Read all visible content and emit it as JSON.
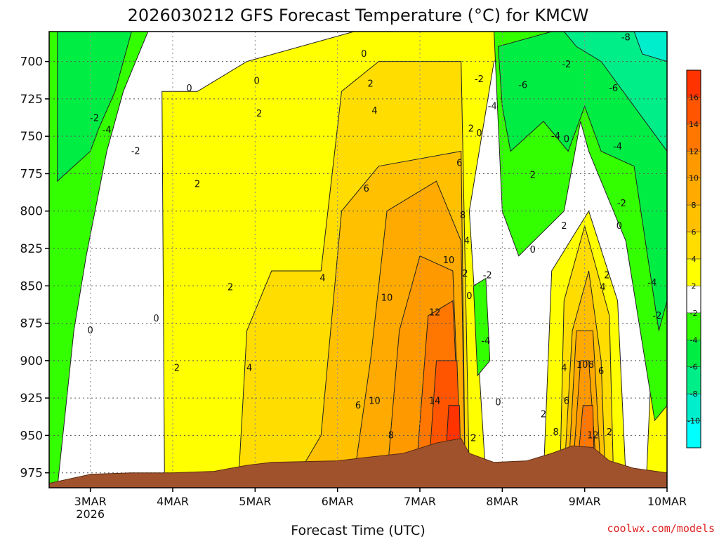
{
  "chart_data": {
    "type": "heatmap",
    "title": "2026030212 GFS Forecast Temperature (°C) for KMCW",
    "xlabel": "Forecast Time (UTC)",
    "ylabel": "",
    "credit": "coolwx.com/models",
    "x_ticks": [
      {
        "day": 3,
        "label": "3MAR",
        "sublabel": "2026"
      },
      {
        "day": 4,
        "label": "4MAR",
        "sublabel": ""
      },
      {
        "day": 5,
        "label": "5MAR",
        "sublabel": ""
      },
      {
        "day": 6,
        "label": "6MAR",
        "sublabel": ""
      },
      {
        "day": 7,
        "label": "7MAR",
        "sublabel": ""
      },
      {
        "day": 8,
        "label": "8MAR",
        "sublabel": ""
      },
      {
        "day": 9,
        "label": "9MAR",
        "sublabel": ""
      },
      {
        "day": 10,
        "label": "10MAR",
        "sublabel": ""
      }
    ],
    "y_ticks": [
      700,
      725,
      750,
      775,
      800,
      825,
      850,
      875,
      900,
      925,
      950,
      975
    ],
    "xlim": [
      2.5,
      10.0
    ],
    "ylim": [
      680,
      985
    ],
    "colorbar": {
      "ticks": [
        16,
        14,
        12,
        10,
        8,
        6,
        4,
        2,
        -2,
        -4,
        -6,
        -8,
        -10
      ],
      "bins": [
        {
          "lo": 16,
          "hi": 18,
          "color": "#ff3300"
        },
        {
          "lo": 14,
          "hi": 16,
          "color": "#ff5500"
        },
        {
          "lo": 12,
          "hi": 14,
          "color": "#ff7700"
        },
        {
          "lo": 10,
          "hi": 12,
          "color": "#ff9900"
        },
        {
          "lo": 8,
          "hi": 10,
          "color": "#ffaa00"
        },
        {
          "lo": 6,
          "hi": 8,
          "color": "#ffc000"
        },
        {
          "lo": 4,
          "hi": 6,
          "color": "#ffdd00"
        },
        {
          "lo": 2,
          "hi": 4,
          "color": "#ffff00"
        },
        {
          "lo": -2,
          "hi": 2,
          "color": "#ffffff"
        },
        {
          "lo": -4,
          "hi": -2,
          "color": "#33ff00"
        },
        {
          "lo": -6,
          "hi": -4,
          "color": "#00ee44"
        },
        {
          "lo": -8,
          "hi": -6,
          "color": "#00ee88"
        },
        {
          "lo": -10,
          "hi": -8,
          "color": "#00eecc"
        },
        {
          "lo": -12,
          "hi": -10,
          "color": "#00ffff"
        }
      ]
    },
    "regions": [
      {
        "name": "warm-2",
        "color": "#ffff00",
        "points": [
          [
            3.9,
            978
          ],
          [
            3.87,
            720
          ],
          [
            4.3,
            720
          ],
          [
            4.9,
            700
          ],
          [
            6.2,
            680
          ],
          [
            8.4,
            680
          ],
          [
            7.9,
            700
          ],
          [
            7.6,
            800
          ],
          [
            7.8,
            978
          ]
        ]
      },
      {
        "name": "warm-2b",
        "color": "#ffff00",
        "points": [
          [
            8.5,
            978
          ],
          [
            8.6,
            840
          ],
          [
            9.05,
            800
          ],
          [
            9.4,
            860
          ],
          [
            9.5,
            978
          ]
        ]
      },
      {
        "name": "warm-2c",
        "color": "#ffff00",
        "points": [
          [
            9.75,
            978
          ],
          [
            9.8,
            915
          ],
          [
            10.0,
            905
          ],
          [
            10.0,
            978
          ]
        ]
      },
      {
        "name": "warm-4",
        "color": "#ffdd00",
        "points": [
          [
            4.8,
            978
          ],
          [
            4.9,
            880
          ],
          [
            5.2,
            840
          ],
          [
            5.8,
            840
          ],
          [
            6.05,
            720
          ],
          [
            6.5,
            700
          ],
          [
            7.5,
            700
          ],
          [
            7.6,
            978
          ]
        ]
      },
      {
        "name": "warm-4b",
        "color": "#ffdd00",
        "points": [
          [
            8.7,
            978
          ],
          [
            8.75,
            860
          ],
          [
            9.0,
            810
          ],
          [
            9.3,
            870
          ],
          [
            9.35,
            978
          ]
        ]
      },
      {
        "name": "warm-6",
        "color": "#ffc000",
        "points": [
          [
            5.5,
            978
          ],
          [
            5.8,
            950
          ],
          [
            6.05,
            800
          ],
          [
            6.5,
            770
          ],
          [
            7.5,
            760
          ],
          [
            7.55,
            978
          ]
        ]
      },
      {
        "name": "warm-6b",
        "color": "#ffc000",
        "points": [
          [
            8.75,
            978
          ],
          [
            8.85,
            880
          ],
          [
            9.05,
            840
          ],
          [
            9.2,
            900
          ],
          [
            9.25,
            978
          ]
        ]
      },
      {
        "name": "warm-8",
        "color": "#ffaa00",
        "points": [
          [
            6.2,
            978
          ],
          [
            6.4,
            900
          ],
          [
            6.6,
            800
          ],
          [
            7.2,
            780
          ],
          [
            7.5,
            820
          ],
          [
            7.55,
            978
          ]
        ]
      },
      {
        "name": "warm-8b",
        "color": "#ffaa00",
        "points": [
          [
            8.8,
            978
          ],
          [
            8.9,
            880
          ],
          [
            9.1,
            880
          ],
          [
            9.2,
            978
          ]
        ]
      },
      {
        "name": "warm-10",
        "color": "#ff9900",
        "points": [
          [
            6.6,
            978
          ],
          [
            6.75,
            880
          ],
          [
            7.0,
            830
          ],
          [
            7.4,
            840
          ],
          [
            7.5,
            978
          ]
        ]
      },
      {
        "name": "warm-12",
        "color": "#ff7700",
        "points": [
          [
            6.95,
            978
          ],
          [
            7.1,
            870
          ],
          [
            7.4,
            860
          ],
          [
            7.5,
            978
          ]
        ]
      },
      {
        "name": "warm-14",
        "color": "#ff5500",
        "points": [
          [
            7.1,
            978
          ],
          [
            7.2,
            900
          ],
          [
            7.45,
            900
          ],
          [
            7.5,
            978
          ]
        ]
      },
      {
        "name": "warm-16",
        "color": "#ff3300",
        "points": [
          [
            7.3,
            978
          ],
          [
            7.35,
            930
          ],
          [
            7.48,
            930
          ],
          [
            7.5,
            978
          ]
        ]
      },
      {
        "name": "warm-10b",
        "color": "#ff9900",
        "points": [
          [
            8.85,
            978
          ],
          [
            8.95,
            900
          ],
          [
            9.05,
            900
          ],
          [
            9.15,
            978
          ]
        ]
      },
      {
        "name": "warm-12b",
        "color": "#ff7700",
        "points": [
          [
            8.9,
            978
          ],
          [
            8.98,
            930
          ],
          [
            9.1,
            930
          ],
          [
            9.12,
            978
          ]
        ]
      },
      {
        "name": "cold-2-left",
        "color": "#33ff00",
        "points": [
          [
            2.5,
            680
          ],
          [
            3.7,
            680
          ],
          [
            3.4,
            720
          ],
          [
            3.2,
            760
          ],
          [
            2.95,
            830
          ],
          [
            2.8,
            880
          ],
          [
            2.6,
            985
          ],
          [
            2.5,
            985
          ]
        ]
      },
      {
        "name": "cold-4-left",
        "color": "#00ee44",
        "points": [
          [
            2.6,
            680
          ],
          [
            3.5,
            680
          ],
          [
            3.3,
            720
          ],
          [
            3.1,
            745
          ],
          [
            3.0,
            760
          ],
          [
            2.8,
            770
          ],
          [
            2.6,
            780
          ]
        ]
      },
      {
        "name": "cold-2-right",
        "color": "#33ff00",
        "points": [
          [
            8.5,
            680
          ],
          [
            10.0,
            680
          ],
          [
            10.0,
            930
          ],
          [
            9.85,
            940
          ],
          [
            9.5,
            820
          ],
          [
            9.05,
            760
          ],
          [
            8.95,
            740
          ],
          [
            8.75,
            800
          ],
          [
            8.2,
            830
          ],
          [
            8.0,
            800
          ],
          [
            7.9,
            680
          ]
        ]
      },
      {
        "name": "cold-4-right",
        "color": "#00ee44",
        "points": [
          [
            8.6,
            680
          ],
          [
            10.0,
            680
          ],
          [
            10.0,
            860
          ],
          [
            9.9,
            880
          ],
          [
            9.6,
            770
          ],
          [
            9.2,
            760
          ],
          [
            9.0,
            730
          ],
          [
            8.8,
            760
          ],
          [
            8.5,
            740
          ],
          [
            8.1,
            760
          ],
          [
            8.0,
            730
          ],
          [
            7.95,
            690
          ]
        ]
      },
      {
        "name": "cold-6-right",
        "color": "#00ee88",
        "points": [
          [
            8.75,
            680
          ],
          [
            10.0,
            680
          ],
          [
            10.0,
            760
          ],
          [
            9.6,
            730
          ],
          [
            9.2,
            700
          ],
          [
            8.9,
            690
          ]
        ]
      },
      {
        "name": "cold-8-right",
        "color": "#00eecc",
        "points": [
          [
            9.6,
            680
          ],
          [
            10.0,
            680
          ],
          [
            10.0,
            700
          ],
          [
            9.7,
            695
          ]
        ]
      },
      {
        "name": "cold-2-mid",
        "color": "#33ff00",
        "points": [
          [
            7.65,
            850
          ],
          [
            7.8,
            845
          ],
          [
            7.85,
            900
          ],
          [
            7.7,
            910
          ]
        ]
      }
    ],
    "contour_labels": [
      {
        "day": 3.0,
        "p": 880,
        "text": "0"
      },
      {
        "day": 3.05,
        "p": 738,
        "text": "-2"
      },
      {
        "day": 3.2,
        "p": 746,
        "text": "-4"
      },
      {
        "day": 3.55,
        "p": 760,
        "text": "-2"
      },
      {
        "day": 4.2,
        "p": 718,
        "text": "0"
      },
      {
        "day": 4.3,
        "p": 782,
        "text": "2"
      },
      {
        "day": 3.8,
        "p": 872,
        "text": "0"
      },
      {
        "day": 4.05,
        "p": 905,
        "text": "2"
      },
      {
        "day": 4.7,
        "p": 851,
        "text": "2"
      },
      {
        "day": 5.02,
        "p": 713,
        "text": "0"
      },
      {
        "day": 5.05,
        "p": 735,
        "text": "2"
      },
      {
        "day": 4.93,
        "p": 905,
        "text": "4"
      },
      {
        "day": 5.82,
        "p": 845,
        "text": "4"
      },
      {
        "day": 6.25,
        "p": 930,
        "text": "6"
      },
      {
        "day": 6.32,
        "p": 695,
        "text": "0"
      },
      {
        "day": 6.4,
        "p": 715,
        "text": "2"
      },
      {
        "day": 6.45,
        "p": 733,
        "text": "4"
      },
      {
        "day": 6.35,
        "p": 785,
        "text": "6"
      },
      {
        "day": 6.45,
        "p": 927,
        "text": "10"
      },
      {
        "day": 6.65,
        "p": 950,
        "text": "8"
      },
      {
        "day": 6.6,
        "p": 858,
        "text": "10"
      },
      {
        "day": 7.18,
        "p": 868,
        "text": "12"
      },
      {
        "day": 7.18,
        "p": 927,
        "text": "14"
      },
      {
        "day": 7.35,
        "p": 833,
        "text": "10"
      },
      {
        "day": 7.48,
        "p": 768,
        "text": "6"
      },
      {
        "day": 7.52,
        "p": 803,
        "text": "8"
      },
      {
        "day": 7.57,
        "p": 820,
        "text": "4"
      },
      {
        "day": 7.55,
        "p": 842,
        "text": "2"
      },
      {
        "day": 7.6,
        "p": 857,
        "text": "0"
      },
      {
        "day": 7.62,
        "p": 745,
        "text": "2"
      },
      {
        "day": 7.72,
        "p": 748,
        "text": "0"
      },
      {
        "day": 7.72,
        "p": 712,
        "text": "-2"
      },
      {
        "day": 7.88,
        "p": 730,
        "text": "-4"
      },
      {
        "day": 7.8,
        "p": 887,
        "text": "-4"
      },
      {
        "day": 7.82,
        "p": 843,
        "text": "-2"
      },
      {
        "day": 7.65,
        "p": 952,
        "text": "2"
      },
      {
        "day": 7.95,
        "p": 928,
        "text": "0"
      },
      {
        "day": 8.25,
        "p": 716,
        "text": "-6"
      },
      {
        "day": 8.37,
        "p": 776,
        "text": "2"
      },
      {
        "day": 8.37,
        "p": 826,
        "text": "0"
      },
      {
        "day": 8.5,
        "p": 936,
        "text": "2"
      },
      {
        "day": 8.65,
        "p": 750,
        "text": "-4"
      },
      {
        "day": 8.78,
        "p": 752,
        "text": "0"
      },
      {
        "day": 8.78,
        "p": 702,
        "text": "-2"
      },
      {
        "day": 8.75,
        "p": 810,
        "text": "2"
      },
      {
        "day": 8.75,
        "p": 905,
        "text": "4"
      },
      {
        "day": 8.78,
        "p": 927,
        "text": "6"
      },
      {
        "day": 8.65,
        "p": 948,
        "text": "8"
      },
      {
        "day": 8.97,
        "p": 903,
        "text": "10"
      },
      {
        "day": 9.08,
        "p": 903,
        "text": "8"
      },
      {
        "day": 9.2,
        "p": 907,
        "text": "6"
      },
      {
        "day": 9.1,
        "p": 950,
        "text": "12"
      },
      {
        "day": 9.22,
        "p": 851,
        "text": "4"
      },
      {
        "day": 9.27,
        "p": 843,
        "text": "2"
      },
      {
        "day": 9.35,
        "p": 718,
        "text": "-6"
      },
      {
        "day": 9.42,
        "p": 810,
        "text": "0"
      },
      {
        "day": 9.4,
        "p": 757,
        "text": "-4"
      },
      {
        "day": 9.45,
        "p": 795,
        "text": "-2"
      },
      {
        "day": 9.3,
        "p": 948,
        "text": "2"
      },
      {
        "day": 9.5,
        "p": 684,
        "text": "-8"
      },
      {
        "day": 9.82,
        "p": 848,
        "text": "-4"
      },
      {
        "day": 9.88,
        "p": 870,
        "text": "-2"
      }
    ],
    "terrain": {
      "color": "#a0522d",
      "points": [
        [
          2.5,
          982
        ],
        [
          3.0,
          976
        ],
        [
          3.5,
          975
        ],
        [
          4.0,
          975
        ],
        [
          4.5,
          974
        ],
        [
          4.9,
          970
        ],
        [
          5.2,
          968
        ],
        [
          6.0,
          967
        ],
        [
          6.3,
          965
        ],
        [
          6.8,
          962
        ],
        [
          7.2,
          955
        ],
        [
          7.5,
          952
        ],
        [
          7.6,
          962
        ],
        [
          7.9,
          968
        ],
        [
          8.3,
          967
        ],
        [
          8.6,
          962
        ],
        [
          8.85,
          957
        ],
        [
          9.1,
          958
        ],
        [
          9.3,
          967
        ],
        [
          9.6,
          972
        ],
        [
          10.0,
          975
        ]
      ]
    }
  }
}
